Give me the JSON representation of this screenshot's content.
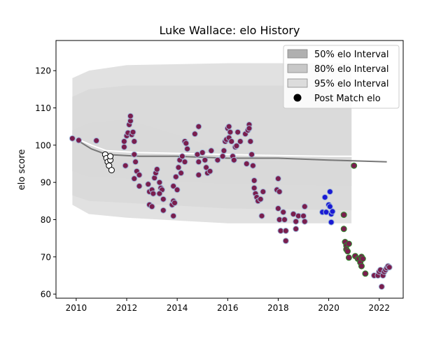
{
  "chart_data": {
    "type": "scatter",
    "title": "Luke Wallace: elo History",
    "xlabel": "",
    "ylabel": "elo score",
    "xlim": [
      2009.2,
      2022.95
    ],
    "ylim": [
      58.9,
      128.1
    ],
    "xticks": [
      2010,
      2012,
      2014,
      2016,
      2018,
      2020,
      2022
    ],
    "yticks": [
      60,
      70,
      80,
      90,
      100,
      110,
      120
    ],
    "grid": false,
    "legend_position": "top-right",
    "legend": [
      {
        "label": "50% elo Interval",
        "kind": "band",
        "color": "#b0b0b0"
      },
      {
        "label": "80% elo Interval",
        "kind": "band",
        "color": "#c8c8c8"
      },
      {
        "label": "95% elo Interval",
        "kind": "band",
        "color": "#dcdcdc"
      },
      {
        "label": "Post Match elo",
        "kind": "marker",
        "color": "#000000"
      }
    ],
    "bands": [
      {
        "name": "95% elo Interval",
        "color": "#dcdcdc",
        "upper": [
          [
            2009.85,
            118
          ],
          [
            2010.5,
            120
          ],
          [
            2012,
            121.5
          ],
          [
            2016,
            122
          ],
          [
            2020.9,
            122
          ]
        ],
        "lower": [
          [
            2020.9,
            79
          ],
          [
            2016,
            79
          ],
          [
            2012,
            80.5
          ],
          [
            2010.5,
            81.5
          ],
          [
            2009.85,
            84
          ]
        ]
      },
      {
        "name": "80% elo Interval",
        "color": "#c8c8c8",
        "upper": [
          [
            2009.85,
            113
          ],
          [
            2010.5,
            115
          ],
          [
            2012,
            116
          ],
          [
            2016,
            116
          ],
          [
            2020.9,
            116
          ]
        ],
        "lower": [
          [
            2020.9,
            82.5
          ],
          [
            2016,
            83
          ],
          [
            2012,
            84.5
          ],
          [
            2010.5,
            85
          ],
          [
            2009.85,
            86.5
          ]
        ]
      },
      {
        "name": "50% elo Interval",
        "color": "#b0b0b0",
        "upper": [
          [
            2009.85,
            104
          ],
          [
            2010.5,
            106
          ],
          [
            2012,
            107
          ],
          [
            2016,
            98.5
          ],
          [
            2020.9,
            97.5
          ]
        ],
        "lower": [
          [
            2020.9,
            89
          ],
          [
            2016,
            89.5
          ],
          [
            2012,
            91
          ],
          [
            2010.5,
            91.5
          ],
          [
            2009.85,
            93
          ]
        ]
      }
    ],
    "trend_lines": [
      {
        "color": "#777777",
        "points": [
          [
            2010,
            101.5
          ],
          [
            2010.6,
            99
          ],
          [
            2011.2,
            97.5
          ],
          [
            2012.5,
            97
          ],
          [
            2014,
            97
          ],
          [
            2016,
            96.5
          ],
          [
            2018,
            96.5
          ],
          [
            2020,
            96
          ],
          [
            2022.3,
            95.5
          ]
        ]
      },
      {
        "color": "#ffffff",
        "points": [
          [
            2010,
            101.8
          ],
          [
            2010.6,
            100
          ],
          [
            2011.2,
            98.5
          ],
          [
            2012.5,
            98
          ],
          [
            2014,
            97.8
          ],
          [
            2016,
            97.5
          ],
          [
            2018,
            97.2
          ],
          [
            2020,
            97
          ],
          [
            2021,
            97
          ]
        ]
      }
    ],
    "series": [
      {
        "fill": "#7a1e4e",
        "stroke": "#9fb6d8",
        "points": [
          [
            2009.85,
            101.8
          ],
          [
            2010.1,
            101.3
          ],
          [
            2010.8,
            101.2
          ],
          [
            2011.9,
            101
          ],
          [
            2012,
            102.5
          ],
          [
            2012.05,
            103.3
          ],
          [
            2012.1,
            105.5
          ],
          [
            2012.15,
            106.5
          ],
          [
            2012.15,
            107.8
          ],
          [
            2012.2,
            102.8
          ],
          [
            2012.25,
            103.5
          ],
          [
            2012.3,
            101
          ],
          [
            2011.9,
            99.5
          ],
          [
            2012.3,
            97.5
          ],
          [
            2012.35,
            95.5
          ],
          [
            2012.4,
            93
          ],
          [
            2012.3,
            91
          ],
          [
            2012.5,
            92
          ],
          [
            2012.5,
            89
          ],
          [
            2011.95,
            94.5
          ],
          [
            2012.85,
            89.5
          ],
          [
            2012.9,
            87.5
          ],
          [
            2013,
            88
          ],
          [
            2013.05,
            87
          ],
          [
            2013.1,
            91.2
          ],
          [
            2013.15,
            92.5
          ],
          [
            2013.2,
            93.5
          ],
          [
            2013.3,
            90
          ],
          [
            2013.35,
            88.5
          ],
          [
            2013.4,
            88
          ],
          [
            2013.3,
            87
          ],
          [
            2012.9,
            84
          ],
          [
            2013,
            83.5
          ],
          [
            2013.45,
            82.5
          ],
          [
            2013.45,
            85.5
          ],
          [
            2013.85,
            81
          ],
          [
            2013.8,
            84
          ],
          [
            2013.85,
            85
          ],
          [
            2013.9,
            84.5
          ],
          [
            2013.85,
            89
          ],
          [
            2014,
            88
          ],
          [
            2013.95,
            91.5
          ],
          [
            2014.05,
            94
          ],
          [
            2014.1,
            96
          ],
          [
            2014.2,
            97
          ],
          [
            2014.15,
            92.5
          ],
          [
            2014.3,
            95.5
          ],
          [
            2014.3,
            101
          ],
          [
            2014.35,
            100.5
          ],
          [
            2014.4,
            99
          ],
          [
            2014.7,
            103
          ],
          [
            2014.85,
            105
          ],
          [
            2014.8,
            97.5
          ],
          [
            2014.85,
            95.5
          ],
          [
            2014.85,
            92
          ],
          [
            2015,
            98
          ],
          [
            2015.1,
            96
          ],
          [
            2015.15,
            94
          ],
          [
            2015.2,
            92.5
          ],
          [
            2015.3,
            93
          ],
          [
            2015.35,
            98.5
          ],
          [
            2015.6,
            96
          ],
          [
            2015.8,
            97
          ],
          [
            2015.85,
            98.5
          ],
          [
            2015.9,
            101
          ],
          [
            2015.95,
            101.5
          ],
          [
            2016,
            104.5
          ],
          [
            2016.05,
            105
          ],
          [
            2016.05,
            102
          ],
          [
            2016.1,
            103.5
          ],
          [
            2016.15,
            101
          ],
          [
            2016.2,
            97
          ],
          [
            2016.25,
            96
          ],
          [
            2016.3,
            99.5
          ],
          [
            2016.35,
            99.8
          ],
          [
            2016.4,
            103.5
          ],
          [
            2016.5,
            101
          ],
          [
            2016.7,
            103
          ],
          [
            2016.75,
            95
          ],
          [
            2016.8,
            104
          ],
          [
            2016.85,
            105.5
          ],
          [
            2016.85,
            104.5
          ],
          [
            2016.9,
            101
          ],
          [
            2016.95,
            97.5
          ],
          [
            2017,
            94.5
          ],
          [
            2017.05,
            90.5
          ],
          [
            2017.05,
            88.5
          ],
          [
            2017.1,
            87
          ],
          [
            2017.15,
            86
          ],
          [
            2017.2,
            85
          ],
          [
            2017.3,
            85.5
          ],
          [
            2017.35,
            81
          ],
          [
            2017.4,
            87.5
          ],
          [
            2017.95,
            88
          ],
          [
            2018,
            91
          ],
          [
            2018.05,
            87.5
          ],
          [
            2018,
            83
          ],
          [
            2018.05,
            80
          ],
          [
            2018.1,
            77
          ],
          [
            2018.2,
            82
          ],
          [
            2018.25,
            80
          ],
          [
            2018.3,
            77
          ],
          [
            2018.3,
            74.3
          ],
          [
            2018.6,
            81.5
          ],
          [
            2018.7,
            79.5
          ],
          [
            2018.7,
            77.5
          ],
          [
            2018.8,
            81
          ],
          [
            2019,
            81
          ],
          [
            2019.05,
            79.5
          ],
          [
            2019.05,
            83.5
          ]
        ]
      },
      {
        "fill": "#ffffff",
        "stroke": "#000000",
        "points": [
          [
            2011.15,
            97.5
          ],
          [
            2011.2,
            96.5
          ],
          [
            2011.25,
            95.5
          ],
          [
            2011.3,
            94.5
          ],
          [
            2011.35,
            96
          ],
          [
            2011.35,
            97
          ],
          [
            2011.4,
            93.3
          ]
        ]
      },
      {
        "fill": "#1a1ad4",
        "stroke": "#9fb6d8",
        "points": [
          [
            2019.75,
            82
          ],
          [
            2019.85,
            86
          ],
          [
            2019.9,
            82
          ],
          [
            2020,
            84
          ],
          [
            2020.05,
            87.5
          ],
          [
            2020.05,
            83.5
          ],
          [
            2020.1,
            81.5
          ],
          [
            2020.1,
            79.3
          ],
          [
            2020.15,
            82.2
          ]
        ]
      },
      {
        "fill": "#7a1e4e",
        "stroke": "#2e8b2e",
        "points": [
          [
            2020.6,
            81.3
          ],
          [
            2020.6,
            77.5
          ],
          [
            2020.65,
            74
          ],
          [
            2020.7,
            73
          ],
          [
            2020.7,
            72
          ],
          [
            2020.75,
            71.5
          ],
          [
            2020.8,
            69.8
          ],
          [
            2020.8,
            73.5
          ],
          [
            2021,
            94.5
          ],
          [
            2021.05,
            70.2
          ],
          [
            2021.15,
            69.5
          ],
          [
            2021.2,
            69.5
          ],
          [
            2021.25,
            68.5
          ],
          [
            2021.3,
            70
          ],
          [
            2021.35,
            69.5
          ],
          [
            2021.3,
            67.5
          ],
          [
            2021.45,
            65.5
          ]
        ]
      },
      {
        "fill": "#7a1e4e",
        "stroke": "#9fb6d8",
        "points": [
          [
            2021.8,
            65
          ],
          [
            2021.95,
            65
          ],
          [
            2022,
            66
          ],
          [
            2022.05,
            66.5
          ],
          [
            2022.1,
            62
          ],
          [
            2022.15,
            65
          ],
          [
            2022.2,
            66
          ],
          [
            2022.25,
            66.5
          ],
          [
            2022.3,
            67
          ],
          [
            2022.35,
            67.5
          ],
          [
            2022.4,
            67.2
          ]
        ]
      }
    ]
  }
}
